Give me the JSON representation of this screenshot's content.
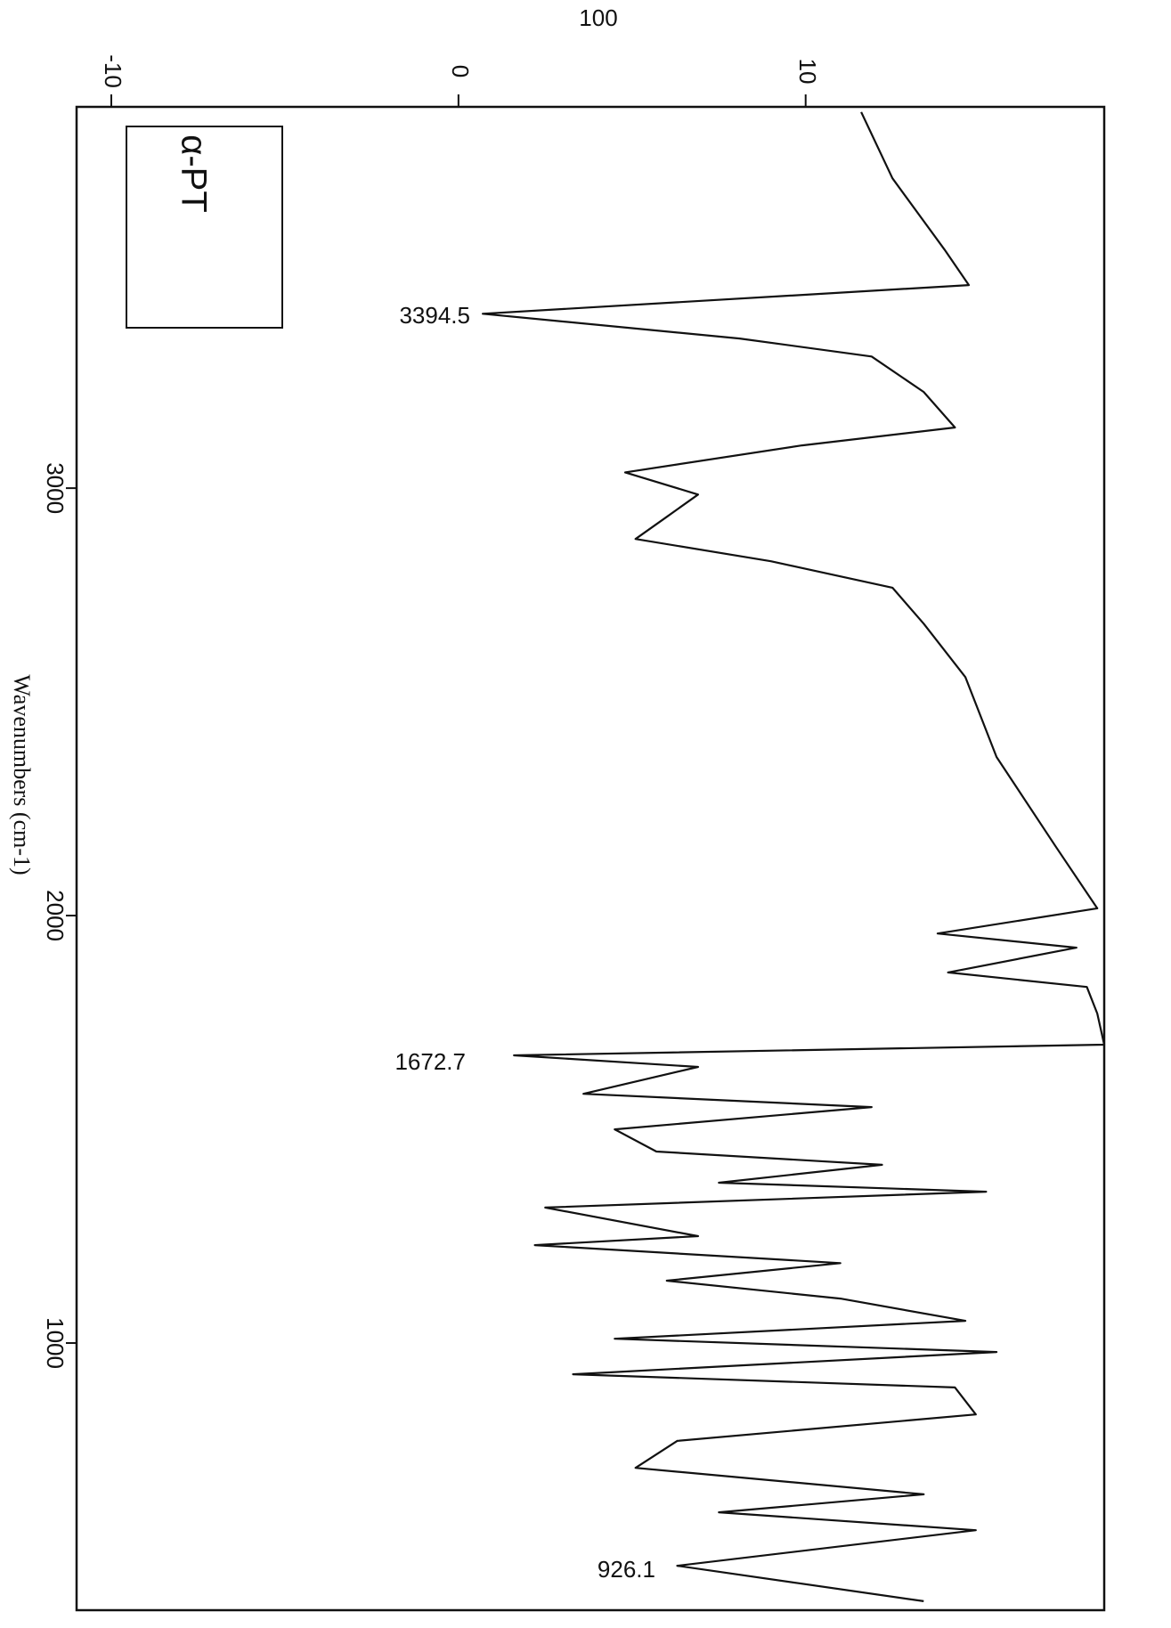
{
  "chart_data": {
    "type": "line",
    "title": "100",
    "x_label": "Wavenumbers (cm-1)",
    "annotations": [
      "3394.5",
      "1672.7",
      "926.1",
      "α-PT"
    ],
    "x": [
      3880,
      3725,
      3558,
      3475,
      3408,
      3350,
      3308,
      3225,
      3142,
      3100,
      3037,
      2985,
      2933,
      2881,
      2829,
      2767,
      2683,
      2558,
      2371,
      2162,
      2017,
      1958,
      1925,
      1867,
      1833,
      1771,
      1698,
      1673,
      1646,
      1583,
      1552,
      1500,
      1448,
      1417,
      1375,
      1354,
      1317,
      1250,
      1229,
      1187,
      1146,
      1104,
      1052,
      1010,
      979,
      927,
      896,
      833,
      771,
      708,
      646,
      604,
      562,
      479,
      396
    ],
    "values": [
      11.6,
      12.5,
      14,
      14.7,
      0.7,
      8.1,
      11.9,
      13.4,
      14.3,
      9.9,
      4.8,
      6.9,
      6.0,
      5.1,
      9.0,
      12.5,
      13.4,
      14.6,
      15.5,
      17.2,
      18.4,
      13.8,
      17.8,
      14.1,
      18.1,
      18.4,
      18.6,
      1.6,
      6.9,
      3.6,
      11.9,
      4.5,
      5.7,
      12.2,
      7.5,
      15.2,
      2.5,
      6.9,
      2.2,
      11.0,
      6.0,
      11.0,
      14.6,
      4.5,
      15.5,
      3.3,
      14.3,
      14.9,
      6.3,
      5.1,
      13.4,
      7.5,
      14.9,
      6.3,
      13.4
    ],
    "color": "#111111",
    "xlim": [
      3892,
      375
    ],
    "xticks": [
      3000,
      2000,
      1000
    ],
    "ylim": [
      -11,
      18.6
    ],
    "yticks": [
      -10,
      0,
      10
    ],
    "grid": false
  }
}
